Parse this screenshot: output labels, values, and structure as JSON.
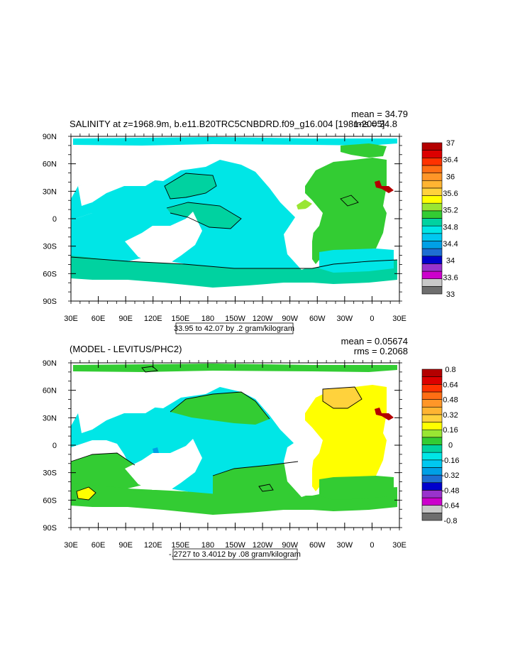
{
  "chart_data": [
    {
      "type": "heatmap",
      "title": "SALINITY at z=1968.9m, b.e11.B20TRC5CNBDRD.f09_g16.004 [1981-2005]",
      "mean_label": "mean = 34.79",
      "rms_label": "rms = 34.8",
      "info_label": "33.95 to 42.07 by .2 gram/kilogram",
      "lat_ticks": [
        "90N",
        "60N",
        "30N",
        "0",
        "30S",
        "60S",
        "90S"
      ],
      "lon_ticks": [
        "30E",
        "60E",
        "90E",
        "120E",
        "150E",
        "180",
        "150W",
        "120W",
        "90W",
        "60W",
        "30W",
        "0",
        "30E"
      ],
      "colorbar_colors": [
        "#6e6e6e",
        "#c8c8c8",
        "#cc00cc",
        "#9933cc",
        "#0000cc",
        "#1e6ed2",
        "#00a0e6",
        "#00c8f0",
        "#00e6e6",
        "#00d2a0",
        "#33cc33",
        "#99e633",
        "#ffff00",
        "#ffd23c",
        "#ffb432",
        "#ff9628",
        "#ff6e14",
        "#ff3200",
        "#dc0000",
        "#b40000"
      ],
      "colorbar_labels": [
        "33",
        "33.6",
        "34",
        "34.4",
        "34.8",
        "35.2",
        "35.6",
        "36",
        "36.4",
        "37"
      ],
      "field_colors": {
        "main": "#00e6e6",
        "deep": "#00d2a0",
        "arctic": "#00e6e6",
        "atlantic": "#33cc33",
        "high": "#99e633",
        "extreme": "#b40000"
      }
    },
    {
      "type": "heatmap",
      "title": "(MODEL - LEVITUS/PHC2)",
      "mean_label": "mean = 0.05674",
      "rms_label": "rms = 0.2068",
      "info_label": "-.2727 to 3.4012 by .08 gram/kilogram",
      "lat_ticks": [
        "90N",
        "60N",
        "30N",
        "0",
        "30S",
        "60S",
        "90S"
      ],
      "lon_ticks": [
        "30E",
        "60E",
        "90E",
        "120E",
        "150E",
        "180",
        "150W",
        "120W",
        "90W",
        "60W",
        "30W",
        "0",
        "30E"
      ],
      "colorbar_colors": [
        "#6e6e6e",
        "#c8c8c8",
        "#cc00cc",
        "#9933cc",
        "#0000cc",
        "#1e6ed2",
        "#00a0e6",
        "#00c8f0",
        "#00e6e6",
        "#00d2a0",
        "#33cc33",
        "#99e633",
        "#ffff00",
        "#ffd23c",
        "#ffb432",
        "#ff9628",
        "#ff6e14",
        "#ff3200",
        "#dc0000",
        "#b40000"
      ],
      "colorbar_labels": [
        "-0.8",
        "-0.64",
        "-0.48",
        "-0.32",
        "-0.16",
        "0",
        "0.16",
        "0.32",
        "0.48",
        "0.64",
        "0.8"
      ],
      "field_colors": {
        "main": "#00e6e6",
        "deep": "#33cc33",
        "arctic": "#33cc33",
        "atlantic": "#ffff00",
        "high": "#ffd23c",
        "extreme": "#b40000"
      }
    }
  ]
}
